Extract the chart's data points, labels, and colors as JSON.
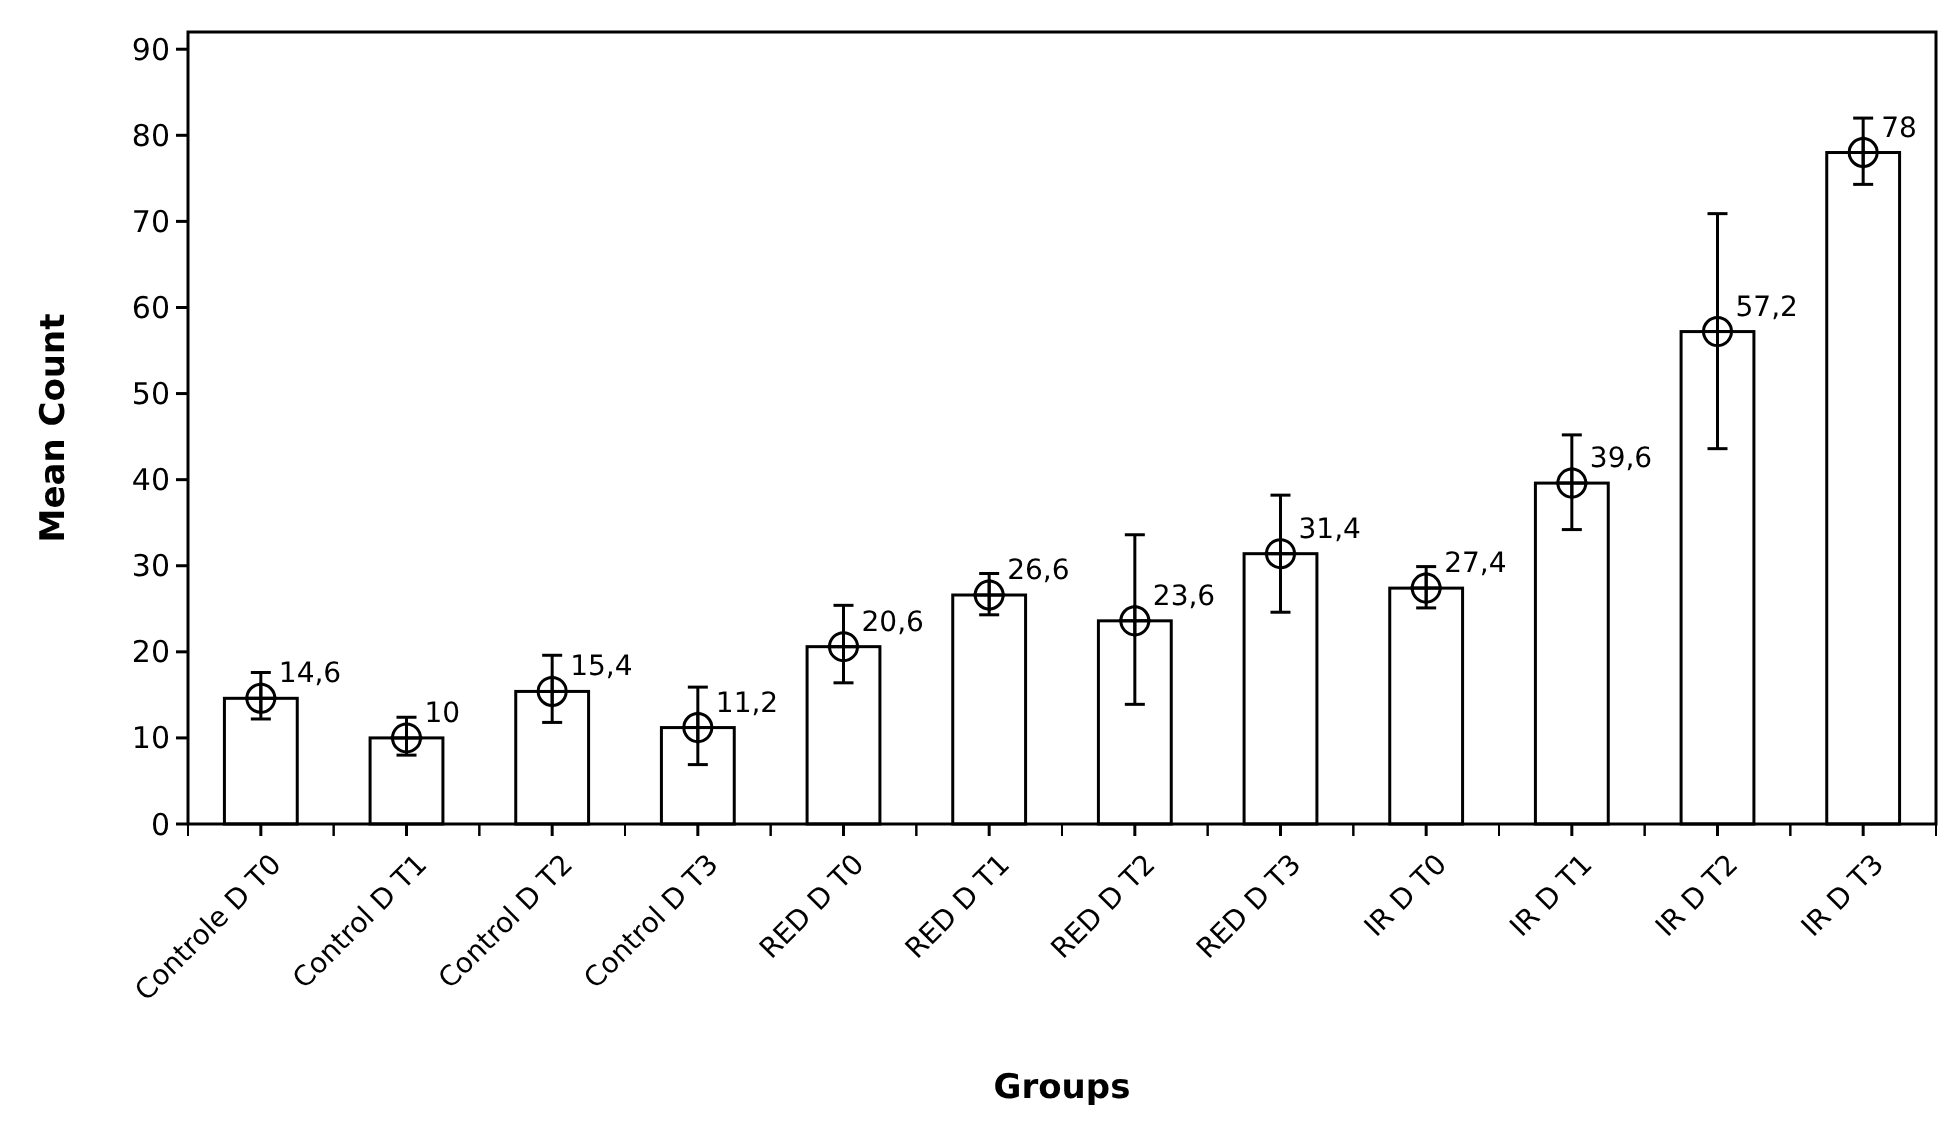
{
  "chart_data": {
    "type": "bar",
    "xlabel": "Groups",
    "ylabel": "Mean Count",
    "categories": [
      "Controle D T0",
      "Control D T1",
      "Control D T2",
      "Control D T3",
      "RED D T0",
      "RED D T1",
      "RED D T2",
      "RED D T3",
      "IR D T0",
      "IR D T1",
      "IR D T2",
      "IR D T3"
    ],
    "values": [
      14.6,
      10,
      15.4,
      11.2,
      20.6,
      26.6,
      23.6,
      31.4,
      27.4,
      39.6,
      57.2,
      78
    ],
    "value_labels": [
      "14,6",
      "10",
      "15,4",
      "11,2",
      "20,6",
      "26,6",
      "23,6",
      "31,4",
      "27,4",
      "39,6",
      "57,2",
      "78"
    ],
    "errors": [
      [
        12.2,
        17.6
      ],
      [
        8,
        12.4
      ],
      [
        11.8,
        19.6
      ],
      [
        6.9,
        15.9
      ],
      [
        16.4,
        25.4
      ],
      [
        24.3,
        29.1
      ],
      [
        13.9,
        33.6
      ],
      [
        24.6,
        38.2
      ],
      [
        25.1,
        29.9
      ],
      [
        34.2,
        45.2
      ],
      [
        43.6,
        70.9
      ],
      [
        74.3,
        82
      ]
    ],
    "color": "#ffffff",
    "marker": "circle",
    "ylim": [
      0,
      92
    ],
    "yticks": [
      0,
      10,
      20,
      30,
      40,
      50,
      60,
      70,
      80,
      90
    ]
  }
}
